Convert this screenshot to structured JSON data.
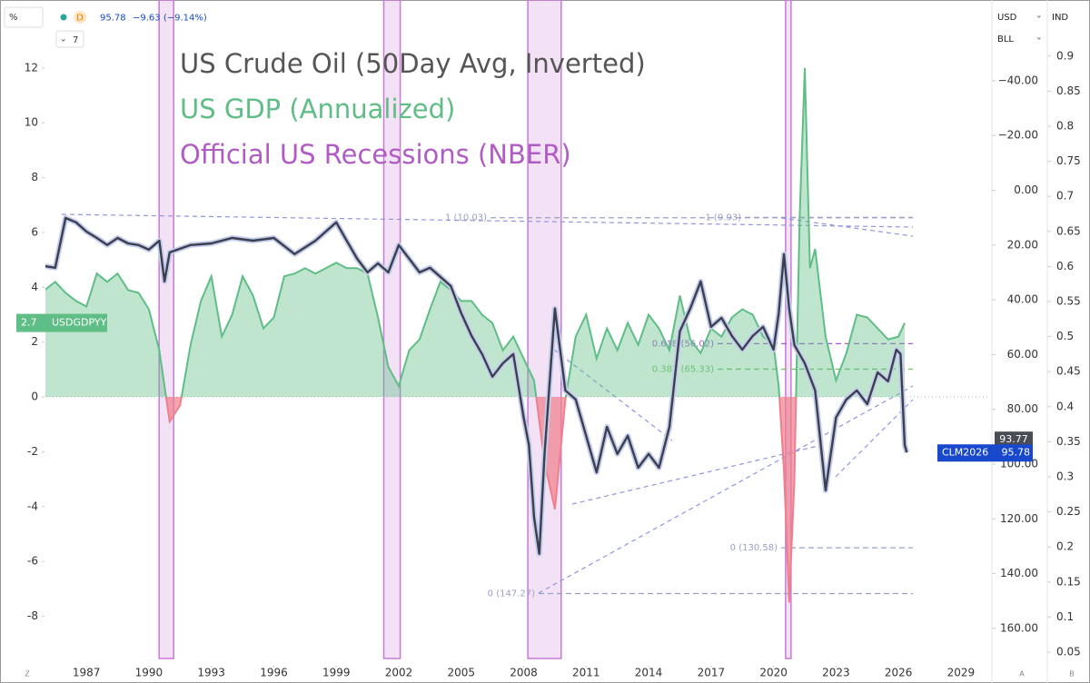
{
  "header": {
    "scale_button": "%",
    "interval": "D",
    "change": "−9.63 (−9.14%)",
    "indicators_count": "7",
    "axis_controls": [
      "USD",
      "BLL",
      "IND"
    ],
    "corner_buttons": [
      "Z",
      "A",
      "B"
    ]
  },
  "chart_data": {
    "type": "line",
    "title_lines": [
      "US Crude Oil (50Day Avg, Inverted)",
      "US GDP (Annualized)",
      "Official US Recessions (NBER)"
    ],
    "title_colors": [
      "#555555",
      "#5fbd86",
      "#b05cc4"
    ],
    "xlim": [
      1985.03,
      2030.4
    ],
    "xticks": [
      1987,
      1990,
      1993,
      1996,
      1999,
      2002,
      2005,
      2008,
      2011,
      2014,
      2017,
      2020,
      2023,
      2026,
      2029
    ],
    "ylim": [
      -9.54,
      14.48
    ],
    "yticks": [
      -8,
      -6,
      -4,
      -2,
      0,
      2,
      4,
      6,
      8,
      10,
      12
    ],
    "y2lim": [
      -69.5,
      171
    ],
    "y2_inverted": true,
    "y2ticks": [
      {
        "value": -40,
        "label": "−40.00"
      },
      {
        "value": -20,
        "label": "−20.00"
      },
      {
        "value": 0,
        "label": "0.00"
      },
      {
        "value": 20,
        "label": "20.00"
      },
      {
        "value": 40,
        "label": "40.00"
      },
      {
        "value": 60,
        "label": "60.00"
      },
      {
        "value": 80,
        "label": "80.00"
      },
      {
        "value": 100,
        "label": "100.00"
      },
      {
        "value": 120,
        "label": "120.00"
      },
      {
        "value": 140,
        "label": "140.00"
      },
      {
        "value": 160,
        "label": "160.00"
      }
    ],
    "y3lim": [
      0.041,
      0.98
    ],
    "y3ticks": [
      0.05,
      0.1,
      0.15,
      0.2,
      0.25,
      0.3,
      0.35,
      0.4,
      0.45,
      0.5,
      0.55,
      0.6,
      0.65,
      0.7,
      0.75,
      0.8,
      0.85,
      0.9
    ],
    "grid": false,
    "recessions": [
      {
        "start": 1990.49,
        "end": 1991.19
      },
      {
        "start": 2001.28,
        "end": 2002.07
      },
      {
        "start": 2008.2,
        "end": 2009.8
      },
      {
        "start": 2020.58,
        "end": 2020.84
      }
    ],
    "recession_color": "#c77ad6",
    "series": [
      {
        "name": "USDGDPYY",
        "color": "#5fbd86",
        "negative_color": "#ef7f8c",
        "x": [
          1985.0,
          1985.5,
          1986,
          1986.5,
          1987,
          1987.5,
          1988,
          1988.5,
          1989,
          1989.5,
          1990,
          1990.5,
          1991,
          1991.5,
          1992,
          1992.5,
          1993,
          1993.5,
          1994,
          1994.5,
          1995,
          1995.5,
          1996,
          1996.5,
          1997,
          1997.5,
          1998,
          1998.5,
          1999,
          1999.5,
          2000,
          2000.5,
          2001,
          2001.5,
          2002,
          2002.5,
          2003,
          2003.5,
          2004,
          2004.5,
          2005,
          2005.5,
          2006,
          2006.5,
          2007,
          2007.5,
          2008,
          2008.5,
          2009,
          2009.5,
          2010,
          2010.5,
          2011,
          2011.5,
          2012,
          2012.5,
          2013,
          2013.5,
          2014,
          2014.5,
          2015,
          2015.5,
          2016,
          2016.5,
          2017,
          2017.5,
          2018,
          2018.5,
          2019,
          2019.5,
          2020,
          2020.25,
          2020.5,
          2020.75,
          2021,
          2021.25,
          2021.5,
          2021.75,
          2022,
          2022.5,
          2023,
          2023.5,
          2024,
          2024.5,
          2025,
          2025.5,
          2026,
          2026.3
        ],
        "values": [
          3.9,
          4.2,
          3.8,
          3.5,
          3.3,
          4.5,
          4.2,
          4.5,
          3.9,
          3.8,
          3.2,
          1.7,
          -0.9,
          -0.3,
          1.9,
          3.5,
          4.4,
          2.2,
          3.0,
          4.4,
          3.7,
          2.5,
          2.9,
          4.4,
          4.5,
          4.7,
          4.5,
          4.7,
          4.9,
          4.7,
          4.7,
          4.5,
          2.9,
          1.1,
          0.4,
          1.7,
          2.1,
          3.2,
          4.2,
          3.9,
          3.5,
          3.5,
          3.0,
          2.7,
          1.7,
          2.2,
          1.4,
          0.6,
          -2.4,
          -4.1,
          -0.1,
          2.2,
          3.0,
          1.4,
          2.5,
          1.7,
          2.7,
          1.9,
          3.0,
          2.5,
          1.7,
          3.7,
          2.1,
          1.6,
          2.5,
          2.2,
          2.9,
          3.2,
          3.0,
          2.2,
          1.9,
          0.4,
          -2.7,
          -7.5,
          -3.1,
          6.5,
          12.0,
          4.7,
          5.4,
          2.2,
          0.6,
          1.6,
          3.0,
          2.9,
          2.5,
          2.1,
          2.2,
          2.7
        ]
      },
      {
        "name": "CLM2026",
        "color": "#3b3f4e",
        "axis": "y2",
        "label_color": "#1848cc",
        "prior_price": 93.77,
        "x": [
          1985.0,
          1985.5,
          1986,
          1986.5,
          1987,
          1987.5,
          1988,
          1988.5,
          1989,
          1989.5,
          1990,
          1990.5,
          1990.75,
          1991,
          1992,
          1993,
          1994,
          1995,
          1996,
          1997,
          1998,
          1999,
          1999.5,
          2000,
          2000.5,
          2001,
          2001.5,
          2002,
          2002.5,
          2003,
          2003.5,
          2004,
          2004.5,
          2005,
          2005.5,
          2006,
          2006.5,
          2007,
          2007.5,
          2008,
          2008.25,
          2008.5,
          2008.75,
          2009,
          2009.5,
          2010,
          2010.5,
          2011,
          2011.5,
          2012,
          2012.5,
          2013,
          2013.5,
          2014,
          2014.5,
          2015,
          2015.5,
          2016,
          2016.5,
          2017,
          2017.5,
          2018,
          2018.5,
          2019,
          2019.5,
          2020,
          2020.25,
          2020.5,
          2020.75,
          2021,
          2021.5,
          2022,
          2022.5,
          2023,
          2023.5,
          2024,
          2024.5,
          2025,
          2025.5,
          2025.9,
          2026.1,
          2026.3,
          2026.4
        ],
        "values": [
          27.7,
          28.3,
          10.1,
          11.7,
          15.1,
          17.4,
          20.0,
          17.4,
          19.4,
          20.0,
          21.7,
          18.4,
          33.3,
          22.7,
          20.0,
          19.4,
          17.4,
          18.4,
          17.4,
          23.3,
          18.4,
          11.7,
          18.4,
          25.0,
          30.0,
          26.7,
          30.0,
          20.0,
          25.0,
          30.0,
          28.3,
          31.6,
          35.0,
          44.9,
          53.2,
          59.8,
          68.1,
          63.2,
          59.8,
          83.0,
          93.0,
          119.5,
          132.8,
          96.3,
          43.2,
          73.1,
          76.4,
          89.7,
          103.0,
          86.4,
          96.3,
          89.7,
          101.3,
          96.3,
          101.3,
          86.4,
          51.5,
          43.2,
          33.3,
          49.9,
          46.6,
          53.2,
          58.2,
          53.2,
          49.9,
          58.2,
          44.9,
          23.3,
          43.2,
          56.5,
          63.2,
          73.1,
          109.6,
          83.0,
          76.4,
          73.1,
          78.1,
          66.5,
          69.8,
          58.2,
          59.8,
          93.0,
          95.78
        ]
      }
    ],
    "fib_levels": [
      {
        "label": "1 (10.03)",
        "value": 10.03,
        "color": "#9aa0c8"
      },
      {
        "label": "0 (147.27)",
        "value": 147.27,
        "color": "#9aa0c8"
      },
      {
        "label": "1 (9.93)",
        "value": 9.93,
        "color": "#9aa0c8"
      },
      {
        "label": "0 (130.58)",
        "value": 130.58,
        "color": "#9aa0c8"
      },
      {
        "label": "0.618 (56.02)",
        "value": 56.02,
        "color": "#a45bd0"
      },
      {
        "label": "0.382 (65.33)",
        "value": 65.33,
        "color": "#77c46a"
      }
    ]
  }
}
